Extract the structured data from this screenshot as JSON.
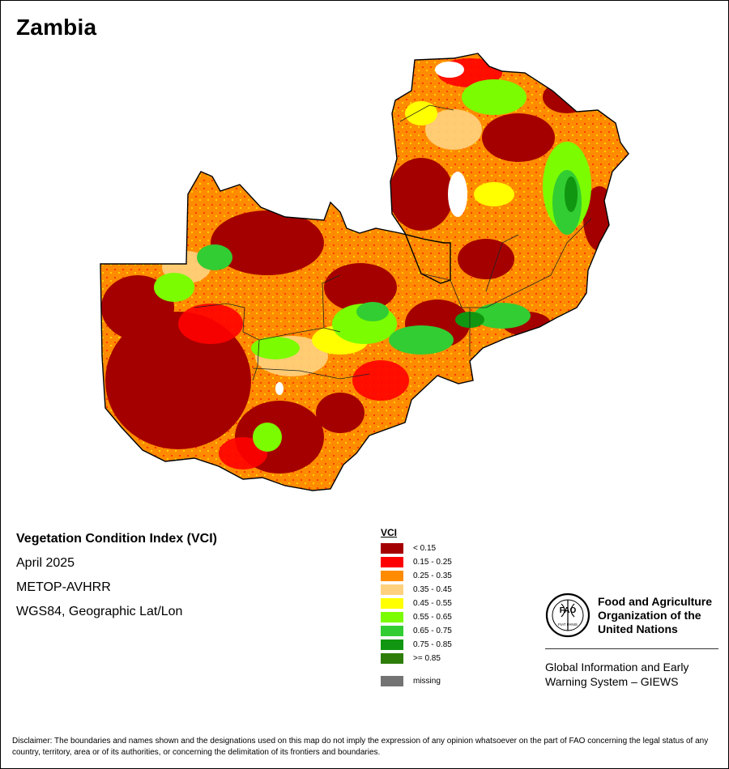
{
  "title": "Zambia",
  "info": {
    "index_name": "Vegetation Condition Index (VCI)",
    "date": "April 2025",
    "sensor": "METOP-AVHRR",
    "projection": "WGS84, Geographic Lat/Lon"
  },
  "legend": {
    "title": "VCI",
    "items": [
      {
        "label": "< 0.15",
        "color": "#a50000"
      },
      {
        "label": "0.15 - 0.25",
        "color": "#ff0000"
      },
      {
        "label": "0.25 - 0.35",
        "color": "#ff8c00"
      },
      {
        "label": "0.35 - 0.45",
        "color": "#ffd17f"
      },
      {
        "label": "0.45 - 0.55",
        "color": "#ffff00"
      },
      {
        "label": "0.55 - 0.65",
        "color": "#7cfc00"
      },
      {
        "label": "0.65 - 0.75",
        "color": "#32cd32"
      },
      {
        "label": "0.75 - 0.85",
        "color": "#119611"
      },
      {
        "label": ">= 0.85",
        "color": "#2e7d0a"
      }
    ],
    "missing": {
      "label": "missing",
      "color": "#737373"
    }
  },
  "organization": {
    "name": "Food and Agriculture Organization of the United Nations",
    "logo_text_top": "FAO",
    "logo_text_bottom": "FIAT PANIS",
    "system": "Global Information and Early Warning System – GIEWS"
  },
  "disclaimer": "Disclaimer: The boundaries and names shown and the designations used on this map do not imply the expression of any opinion whatsoever on the part of FAO concerning the legal status of any country, territory, area or of its authorities, or concerning the delimitation of its frontiers and boundaries."
}
